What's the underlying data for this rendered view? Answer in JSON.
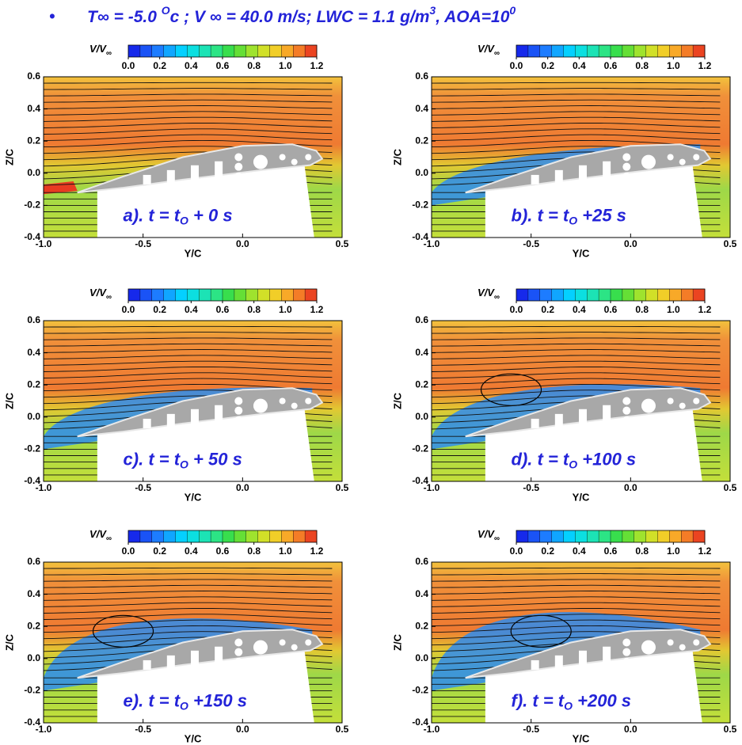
{
  "bullet": "•",
  "title_parts": [
    "T∞ = -5.0 ",
    "O",
    "c ; V ∞ = 40.0 m/s; LWC = 1.1 g/m",
    "3",
    ", AOA=10",
    "0"
  ],
  "colorbar": {
    "label_parts": [
      "V/V",
      "∞"
    ],
    "range": [
      0,
      1.2
    ],
    "ticks": [
      {
        "value": 0,
        "label": "0.0"
      },
      {
        "value": 0.2,
        "label": "0.2"
      },
      {
        "value": 0.4,
        "label": "0.4"
      },
      {
        "value": 0.6,
        "label": "0.6"
      },
      {
        "value": 0.8,
        "label": "0.8"
      },
      {
        "value": 1.0,
        "label": "1.0"
      },
      {
        "value": 1.2,
        "label": "1.2"
      }
    ]
  },
  "axes": {
    "xlabel": "Y/C",
    "ylabel": "Z/C",
    "xlim": [
      -1.0,
      0.5
    ],
    "ylim": [
      -0.4,
      0.6
    ],
    "xticks": [
      {
        "value": -1.0,
        "label": "-1.0"
      },
      {
        "value": -0.5,
        "label": "-0.5"
      },
      {
        "value": 0,
        "label": "0.0"
      },
      {
        "value": 0.5,
        "label": "0.5"
      }
    ],
    "yticks": [
      {
        "value": -0.4,
        "label": "-0.4"
      },
      {
        "value": -0.2,
        "label": "-0.2"
      },
      {
        "value": 0,
        "label": "0.0"
      },
      {
        "value": 0.2,
        "label": "0.2"
      },
      {
        "value": 0.4,
        "label": "0.4"
      },
      {
        "value": 0.6,
        "label": "0.6"
      }
    ]
  },
  "panels": [
    {
      "label_parts": [
        "a). t = t",
        "O",
        " + 0 s"
      ]
    },
    {
      "label_parts": [
        "b). t = t",
        "O",
        " +25 s"
      ]
    },
    {
      "label_parts": [
        "c). t = t",
        "O",
        " + 50 s"
      ]
    },
    {
      "label_parts": [
        "d). t = t",
        "O",
        " +100 s"
      ]
    },
    {
      "label_parts": [
        "e). t = t",
        "O",
        " +150 s"
      ]
    },
    {
      "label_parts": [
        "f). t = t",
        "O",
        " +200 s"
      ]
    }
  ]
}
